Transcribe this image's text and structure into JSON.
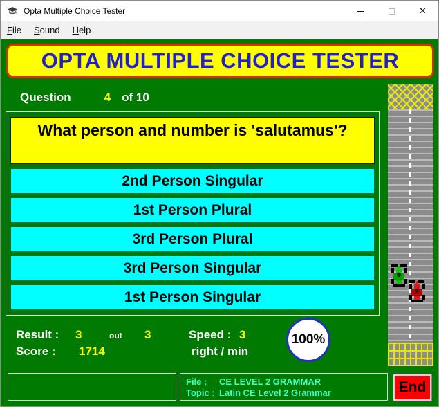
{
  "window": {
    "title": "Opta Multiple Choice Tester",
    "icons": {
      "minimize_glyph": "─",
      "close_glyph": "✕"
    }
  },
  "menubar": {
    "items": [
      {
        "label": "File"
      },
      {
        "label": "Sound"
      },
      {
        "label": "Help"
      }
    ]
  },
  "banner": {
    "title": "OPTA MULTIPLE CHOICE TESTER"
  },
  "question": {
    "label": "Question",
    "number": "4",
    "of": "of 10",
    "text": "What person and number is 'salutamus'?"
  },
  "answers": [
    "2nd Person Singular",
    "1st Person Plural",
    "3rd Person Plural",
    "3rd Person Singular",
    "1st Person Singular"
  ],
  "stats": {
    "result_label": "Result  :",
    "result_value": "3",
    "out_label": "out",
    "out_total": "3",
    "speed_label": "Speed :",
    "speed_value": "3",
    "score_label": "Score  :",
    "score_value": "1714",
    "rate_label": "right / min",
    "percent": "100%"
  },
  "footer": {
    "file_label": "File :",
    "file_value": "CE LEVEL 2 GRAMMAR",
    "topic_label": "Topic :",
    "topic_value": "Latin CE Level 2 Grammar",
    "end_label": "End"
  },
  "colors": {
    "background_green": "#007a00",
    "banner_yellow": "#ffff00",
    "banner_border_red": "#d83000",
    "banner_text_blue": "#2020cc",
    "answer_cyan": "#00ffff",
    "value_yellow": "#ffff00",
    "end_red": "#ff0000",
    "info_text_aqua": "#40ffc0",
    "car_green": "#00cc00",
    "car_red": "#ee1111"
  }
}
